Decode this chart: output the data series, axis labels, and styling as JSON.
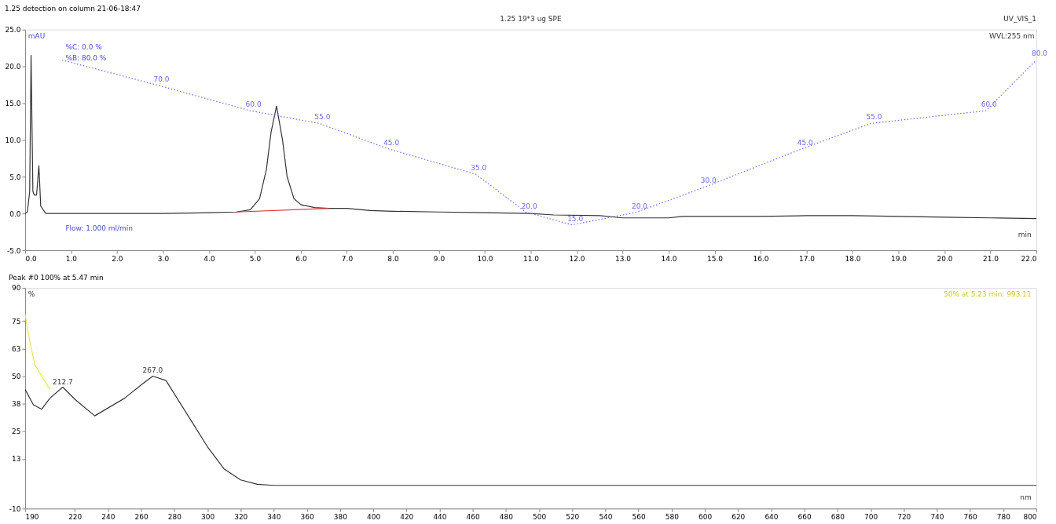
{
  "chart_data": [
    {
      "type": "line",
      "title": "1.25 detection on column 21-06-18:47",
      "annotations": [
        "1.25 19*3 ug SPE",
        "UV_VIS_1",
        "WVL:255 nm",
        "mAU",
        "%C: 0.0 %",
        "%B: 80.0 %",
        "Flow: 1.000 ml/min",
        "min"
      ],
      "xlim": [
        0,
        22
      ],
      "ylim": [
        -5,
        25
      ],
      "xticks": [
        {
          "value": 0,
          "label": "0.0"
        },
        {
          "value": 1,
          "label": "1.0"
        },
        {
          "value": 2,
          "label": "2.0"
        },
        {
          "value": 3,
          "label": "3.0"
        },
        {
          "value": 4,
          "label": "4.0"
        },
        {
          "value": 5,
          "label": "5.0"
        },
        {
          "value": 6,
          "label": "6.0"
        },
        {
          "value": 7,
          "label": "7.0"
        },
        {
          "value": 8,
          "label": "8.0"
        },
        {
          "value": 9,
          "label": "9.0"
        },
        {
          "value": 10,
          "label": "10.0"
        },
        {
          "value": 11,
          "label": "11.0"
        },
        {
          "value": 12,
          "label": "12.0"
        },
        {
          "value": 13,
          "label": "13.0"
        },
        {
          "value": 14,
          "label": "14.0"
        },
        {
          "value": 15,
          "label": "15.0"
        },
        {
          "value": 16,
          "label": "16.0"
        },
        {
          "value": 17,
          "label": "17.0"
        },
        {
          "value": 18,
          "label": "18.0"
        },
        {
          "value": 19,
          "label": "19.0"
        },
        {
          "value": 20,
          "label": "20.0"
        },
        {
          "value": 21,
          "label": "21.0"
        },
        {
          "value": 22,
          "label": "22.0"
        }
      ],
      "yticks": [
        {
          "value": -5,
          "label": "-5.0"
        },
        {
          "value": 0,
          "label": "0.0"
        },
        {
          "value": 5,
          "label": "5.0"
        },
        {
          "value": 10,
          "label": "10.0"
        },
        {
          "value": 15,
          "label": "15.0"
        },
        {
          "value": 20,
          "label": "20.0"
        },
        {
          "value": 25,
          "label": "25.0"
        }
      ],
      "y2lim": [
        5,
        92
      ],
      "grid": false,
      "series": [
        {
          "color": "#333333",
          "x": [
            0,
            0.05,
            0.1,
            0.13,
            0.17,
            0.2,
            0.25,
            0.3,
            0.34,
            0.45,
            1,
            2,
            3,
            4,
            4.6,
            4.9,
            5.1,
            5.25,
            5.35,
            5.47,
            5.6,
            5.7,
            5.85,
            6.0,
            6.3,
            6.6,
            7.0,
            7.5,
            8,
            9,
            10,
            11,
            11.5,
            12.5,
            13,
            14,
            14.3,
            16,
            17,
            18,
            19,
            20,
            21,
            22
          ],
          "values": [
            0,
            0.2,
            3,
            21.5,
            3,
            2.5,
            2.5,
            6.5,
            1,
            0,
            0,
            0,
            0,
            0.1,
            0.2,
            0.5,
            2,
            6,
            11,
            14.6,
            10,
            5,
            2,
            1.2,
            0.8,
            0.7,
            0.7,
            0.4,
            0.3,
            0.2,
            0.1,
            0,
            -0.2,
            -0.3,
            -0.6,
            -0.6,
            -0.4,
            -0.4,
            -0.3,
            -0.3,
            -0.4,
            -0.5,
            -0.6,
            -0.7
          ]
        },
        {
          "color": "#e03030",
          "x": [
            4.6,
            6.6
          ],
          "values": [
            0.2,
            0.7
          ]
        },
        {
          "color": "#6a6ae0",
          "axis": "y2",
          "line_style": "dotted",
          "x": [
            0.8,
            2.9,
            4.9,
            6.4,
            7.9,
            9.8,
            10.9,
            11.9,
            13.3,
            14.8,
            16.9,
            18.4,
            20.9,
            22
          ],
          "values": [
            80,
            70,
            60,
            55,
            45,
            35,
            20,
            15,
            20,
            30,
            45,
            55,
            60,
            80
          ],
          "value_labels": [
            null,
            "70.0",
            "60.0",
            "55.0",
            "45.0",
            "35.0",
            "20.0",
            "15.0",
            "20.0",
            "30.0",
            "45.0",
            "55.0",
            "60.0",
            "80.0"
          ]
        }
      ]
    },
    {
      "type": "line",
      "title": "Peak #0  100% at 5.47 min",
      "annotations": [
        "%",
        "nm",
        "50% at 5.23 min: 993.11",
        {
          "text": "212.7",
          "x": 212.7,
          "y": 45
        },
        {
          "text": "267.0",
          "x": 267,
          "y": 50
        }
      ],
      "xlim": [
        190,
        800
      ],
      "ylim": [
        -10,
        90
      ],
      "xticks": [
        190,
        220,
        240,
        260,
        280,
        300,
        320,
        340,
        360,
        380,
        400,
        420,
        440,
        460,
        480,
        500,
        520,
        540,
        560,
        580,
        600,
        620,
        640,
        660,
        680,
        700,
        720,
        740,
        760,
        780,
        800
      ],
      "yticks": [
        -10,
        {
          "value": 12.5,
          "label": "13"
        },
        25,
        {
          "value": 37.5,
          "label": "38"
        },
        50,
        {
          "value": 62.5,
          "label": "63"
        },
        75,
        90
      ],
      "grid": false,
      "series": [
        {
          "color": "#e6e650",
          "x": [
            190,
            193,
            196,
            200,
            205
          ],
          "values": [
            78,
            65,
            55,
            50,
            44
          ]
        },
        {
          "color": "#333333",
          "x": [
            190,
            195,
            200,
            205,
            212.7,
            220,
            232,
            250,
            260,
            267,
            275,
            285,
            300,
            310,
            320,
            330,
            340,
            400,
            500,
            600,
            700,
            800
          ],
          "values": [
            44,
            37,
            35,
            40,
            45,
            39.5,
            32,
            40,
            46,
            50,
            48,
            36,
            18,
            8,
            3,
            1,
            0.5,
            0.5,
            0.5,
            0.5,
            0.5,
            0.5
          ]
        }
      ]
    }
  ]
}
